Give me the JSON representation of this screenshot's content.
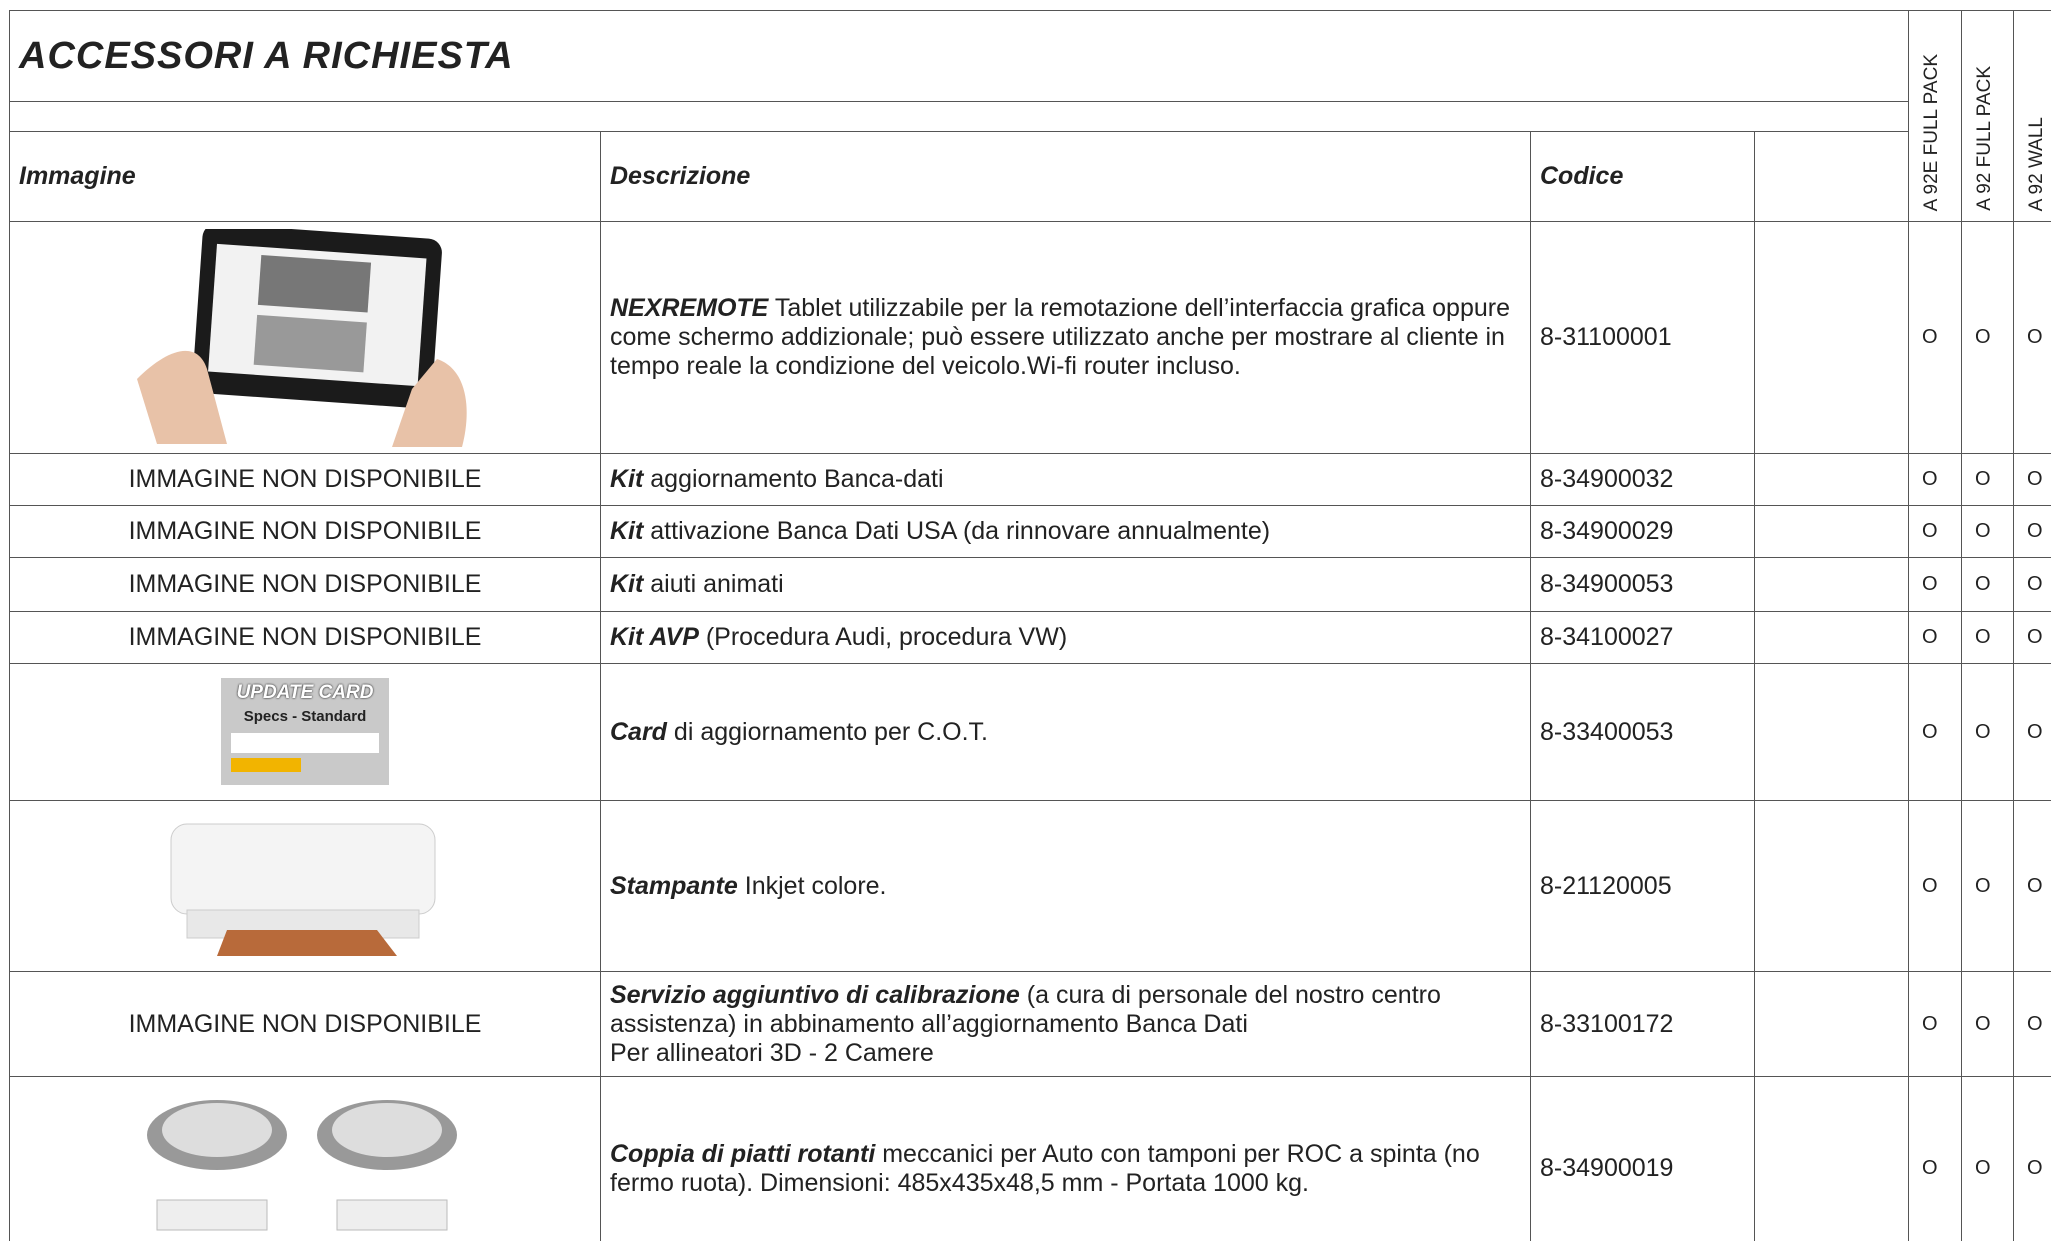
{
  "title": "ACCESSORI A RICHIESTA",
  "columns": [
    "Immagine",
    "Descrizione",
    "Codice"
  ],
  "variants": [
    "A 92E FULL PACK",
    "A 92 FULL PACK",
    "A 92 WALL"
  ],
  "rows": [
    {
      "image_text": null,
      "description": {
        "lead": "NEXREMOTE",
        "text": "Tablet utilizzabile per la remotazione dell’interfaccia grafica oppure come schermo addizionale; può essere utilizzato anche per mostrare al cliente in tempo reale la condizione del veicolo.Wi-fi router incluso."
      },
      "code": "8-31100001",
      "marks": [
        "O",
        "O",
        "O"
      ]
    },
    {
      "image_text": "IMMAGINE NON DISPONIBILE",
      "description": {
        "lead": "Kit",
        "text": "aggiornamento Banca-dati"
      },
      "code": "8-34900032",
      "marks": [
        "O",
        "O",
        "O"
      ]
    },
    {
      "image_text": "IMMAGINE NON DISPONIBILE",
      "description": {
        "lead": "Kit",
        "text": "attivazione Banca Dati USA (da rinnovare annualmente)"
      },
      "code": "8-34900029",
      "marks": [
        "O",
        "O",
        "O"
      ]
    },
    {
      "image_text": "IMMAGINE NON DISPONIBILE",
      "description": {
        "lead": "Kit",
        "text": "aiuti animati"
      },
      "code": "8-34900053",
      "marks": [
        "O",
        "O",
        "O"
      ]
    },
    {
      "image_text": "IMMAGINE NON DISPONIBILE",
      "description": {
        "lead": "Kit AVP",
        "text": "(Procedura Audi, procedura VW)"
      },
      "code": "8-34100027",
      "marks": [
        "O",
        "O",
        "O"
      ]
    },
    {
      "image_text": null,
      "image_labels": [
        "UPDATE CARD",
        "Specs - Standard"
      ],
      "description": {
        "lead": "Card",
        "text": "di aggiornamento per C.O.T."
      },
      "code": "8-33400053",
      "marks": [
        "O",
        "O",
        "O"
      ]
    },
    {
      "image_text": null,
      "description": {
        "lead": "Stampante",
        "text": "Inkjet colore."
      },
      "code": "8-21120005",
      "marks": [
        "O",
        "O",
        "O"
      ]
    },
    {
      "image_text": "IMMAGINE NON DISPONIBILE",
      "description": {
        "lead": "Servizio aggiuntivo di calibrazione",
        "text": "(a cura di personale del nostro centro assistenza) in abbinamento all’aggiornamento Banca Dati",
        "note": "Per allineatori 3D - 2 Camere"
      },
      "code": "8-33100172",
      "marks": [
        "O",
        "O",
        "O"
      ]
    },
    {
      "image_text": null,
      "description": {
        "lead": "Coppia di piatti rotanti",
        "text": "meccanici per Auto con tamponi per ROC a spinta (no fermo ruota). Dimensioni: 485x435x48,5 mm - Portata 1000 kg."
      },
      "code": "8-34900019",
      "marks": [
        "O",
        "O",
        "O"
      ]
    }
  ]
}
